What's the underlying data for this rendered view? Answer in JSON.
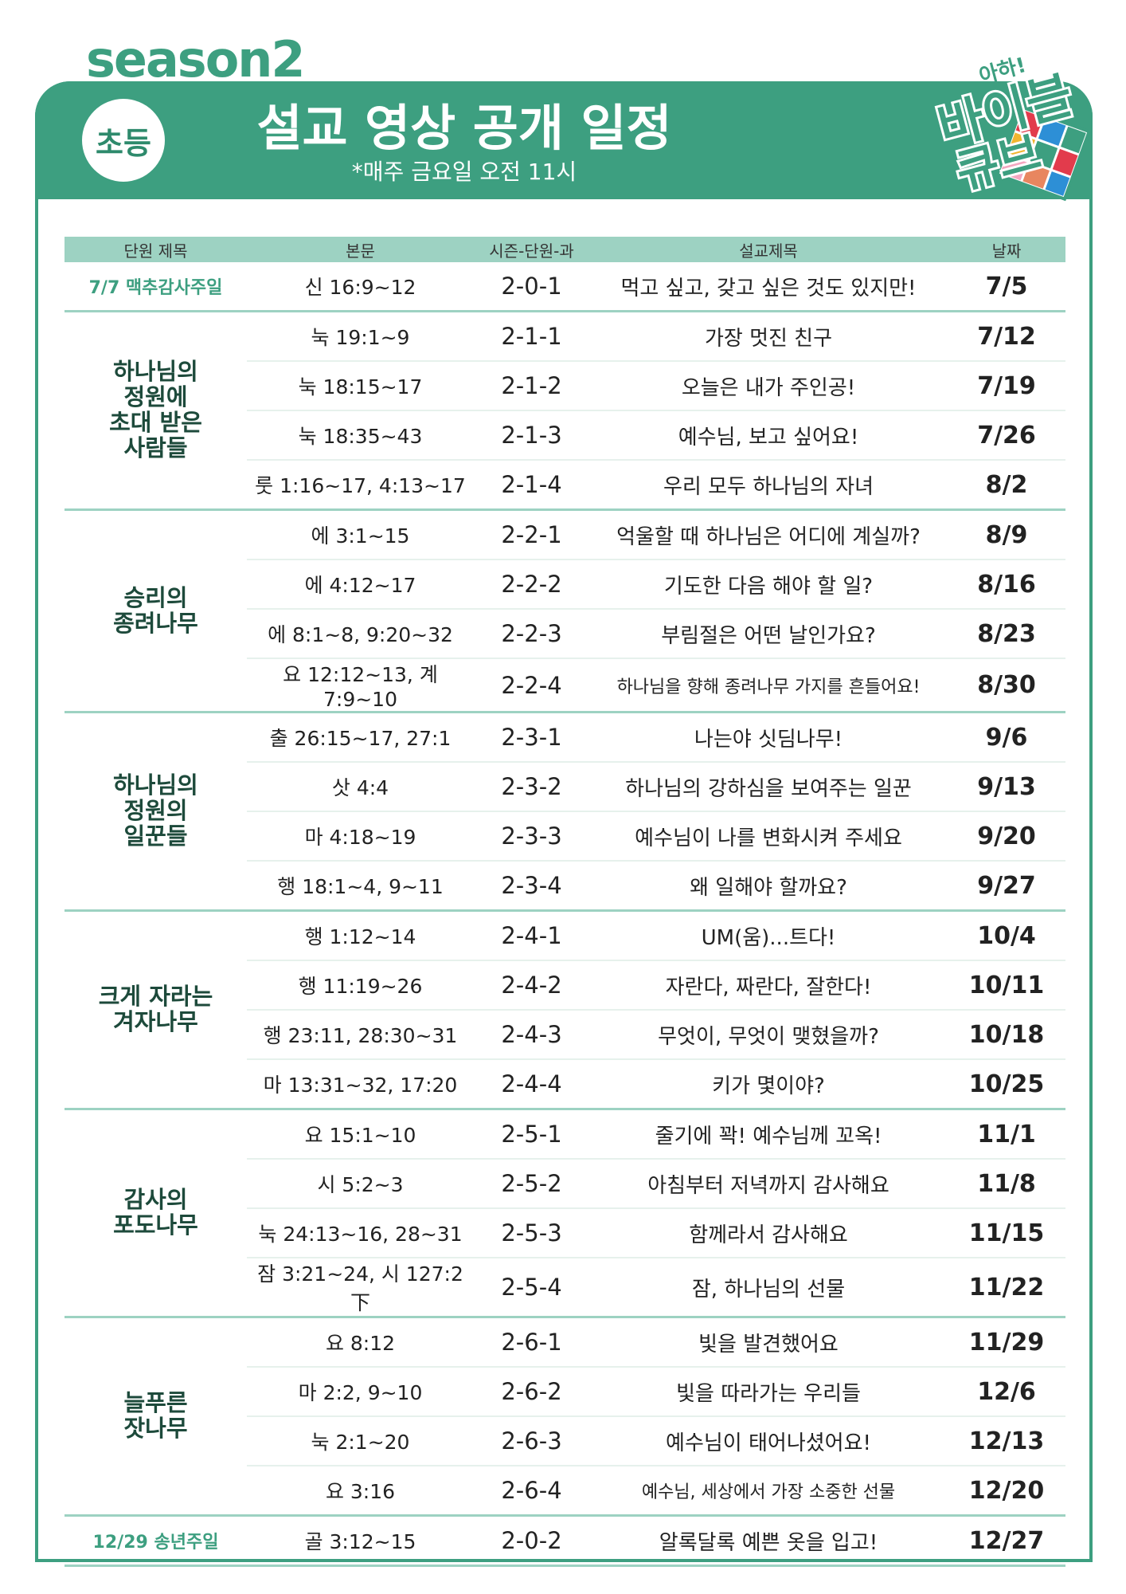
{
  "header": {
    "season": "season2",
    "badge": "초등",
    "title": "설교 영상 공개 일정",
    "subtitle": "*매주 금요일 오전 11시",
    "logo_text": "아하! 바이블 큐브",
    "accent": "#3d9f80",
    "header_row_color": "#9dd2c2"
  },
  "columns": [
    "단원 제목",
    "본문",
    "시즌-단원-과",
    "설교제목",
    "날짜"
  ],
  "groups": [
    {
      "unit": "7/7 맥추감사주일",
      "special": true,
      "rows": [
        {
          "verse": "신 16:9~12",
          "code": "2-0-1",
          "title": "먹고 싶고, 갖고 싶은 것도 있지만!",
          "date": "7/5"
        }
      ]
    },
    {
      "unit": "하나님의\n정원에\n초대 받은\n사람들",
      "rows": [
        {
          "verse": "눅 19:1~9",
          "code": "2-1-1",
          "title": "가장 멋진 친구",
          "date": "7/12"
        },
        {
          "verse": "눅 18:15~17",
          "code": "2-1-2",
          "title": "오늘은 내가 주인공!",
          "date": "7/19"
        },
        {
          "verse": "눅 18:35~43",
          "code": "2-1-3",
          "title": "예수님, 보고 싶어요!",
          "date": "7/26"
        },
        {
          "verse": "룻 1:16~17, 4:13~17",
          "code": "2-1-4",
          "title": "우리 모두 하나님의 자녀",
          "date": "8/2"
        }
      ]
    },
    {
      "unit": "승리의\n종려나무",
      "rows": [
        {
          "verse": "에 3:1~15",
          "code": "2-2-1",
          "title": "억울할 때 하나님은 어디에 계실까?",
          "date": "8/9"
        },
        {
          "verse": "에 4:12~17",
          "code": "2-2-2",
          "title": "기도한 다음 해야 할 일?",
          "date": "8/16"
        },
        {
          "verse": "에 8:1~8, 9:20~32",
          "code": "2-2-3",
          "title": "부림절은 어떤 날인가요?",
          "date": "8/23"
        },
        {
          "verse": "요 12:12~13, 계 7:9~10",
          "code": "2-2-4",
          "title": "하나님을 향해 종려나무 가지를 흔들어요!",
          "date": "8/30",
          "small": true
        }
      ]
    },
    {
      "unit": "하나님의\n정원의\n일꾼들",
      "rows": [
        {
          "verse": "출 26:15~17, 27:1",
          "code": "2-3-1",
          "title": "나는야 싯딤나무!",
          "date": "9/6"
        },
        {
          "verse": "삿 4:4",
          "code": "2-3-2",
          "title": "하나님의 강하심을 보여주는 일꾼",
          "date": "9/13"
        },
        {
          "verse": "마 4:18~19",
          "code": "2-3-3",
          "title": "예수님이 나를 변화시켜 주세요",
          "date": "9/20"
        },
        {
          "verse": "행 18:1~4, 9~11",
          "code": "2-3-4",
          "title": "왜 일해야 할까요?",
          "date": "9/27"
        }
      ]
    },
    {
      "unit": "크게 자라는\n겨자나무",
      "rows": [
        {
          "verse": "행 1:12~14",
          "code": "2-4-1",
          "title": "UM(움)...트다!",
          "date": "10/4"
        },
        {
          "verse": "행 11:19~26",
          "code": "2-4-2",
          "title": "자란다, 짜란다, 잘한다!",
          "date": "10/11"
        },
        {
          "verse": "행 23:11, 28:30~31",
          "code": "2-4-3",
          "title": "무엇이, 무엇이 맺혔을까?",
          "date": "10/18"
        },
        {
          "verse": "마 13:31~32, 17:20",
          "code": "2-4-4",
          "title": "키가 몇이야?",
          "date": "10/25"
        }
      ]
    },
    {
      "unit": "감사의\n포도나무",
      "rows": [
        {
          "verse": "요 15:1~10",
          "code": "2-5-1",
          "title": "줄기에 꽉! 예수님께 꼬옥!",
          "date": "11/1"
        },
        {
          "verse": "시 5:2~3",
          "code": "2-5-2",
          "title": "아침부터 저녁까지 감사해요",
          "date": "11/8"
        },
        {
          "verse": "눅 24:13~16, 28~31",
          "code": "2-5-3",
          "title": "함께라서 감사해요",
          "date": "11/15"
        },
        {
          "verse": "잠 3:21~24, 시 127:2 下",
          "code": "2-5-4",
          "title": "잠, 하나님의 선물",
          "date": "11/22"
        }
      ]
    },
    {
      "unit": "늘푸른\n잣나무",
      "rows": [
        {
          "verse": "요 8:12",
          "code": "2-6-1",
          "title": "빛을 발견했어요",
          "date": "11/29"
        },
        {
          "verse": "마 2:2, 9~10",
          "code": "2-6-2",
          "title": "빛을 따라가는 우리들",
          "date": "12/6"
        },
        {
          "verse": "눅 2:1~20",
          "code": "2-6-3",
          "title": "예수님이 태어나셨어요!",
          "date": "12/13"
        },
        {
          "verse": "요 3:16",
          "code": "2-6-4",
          "title": "예수님, 세상에서 가장 소중한 선물",
          "date": "12/20",
          "small": true
        }
      ]
    },
    {
      "unit": "12/29 송년주일",
      "special": true,
      "rows": [
        {
          "verse": "골 3:12~15",
          "code": "2-0-2",
          "title": "알록달록 예쁜 옷을 입고!",
          "date": "12/27"
        }
      ]
    }
  ]
}
